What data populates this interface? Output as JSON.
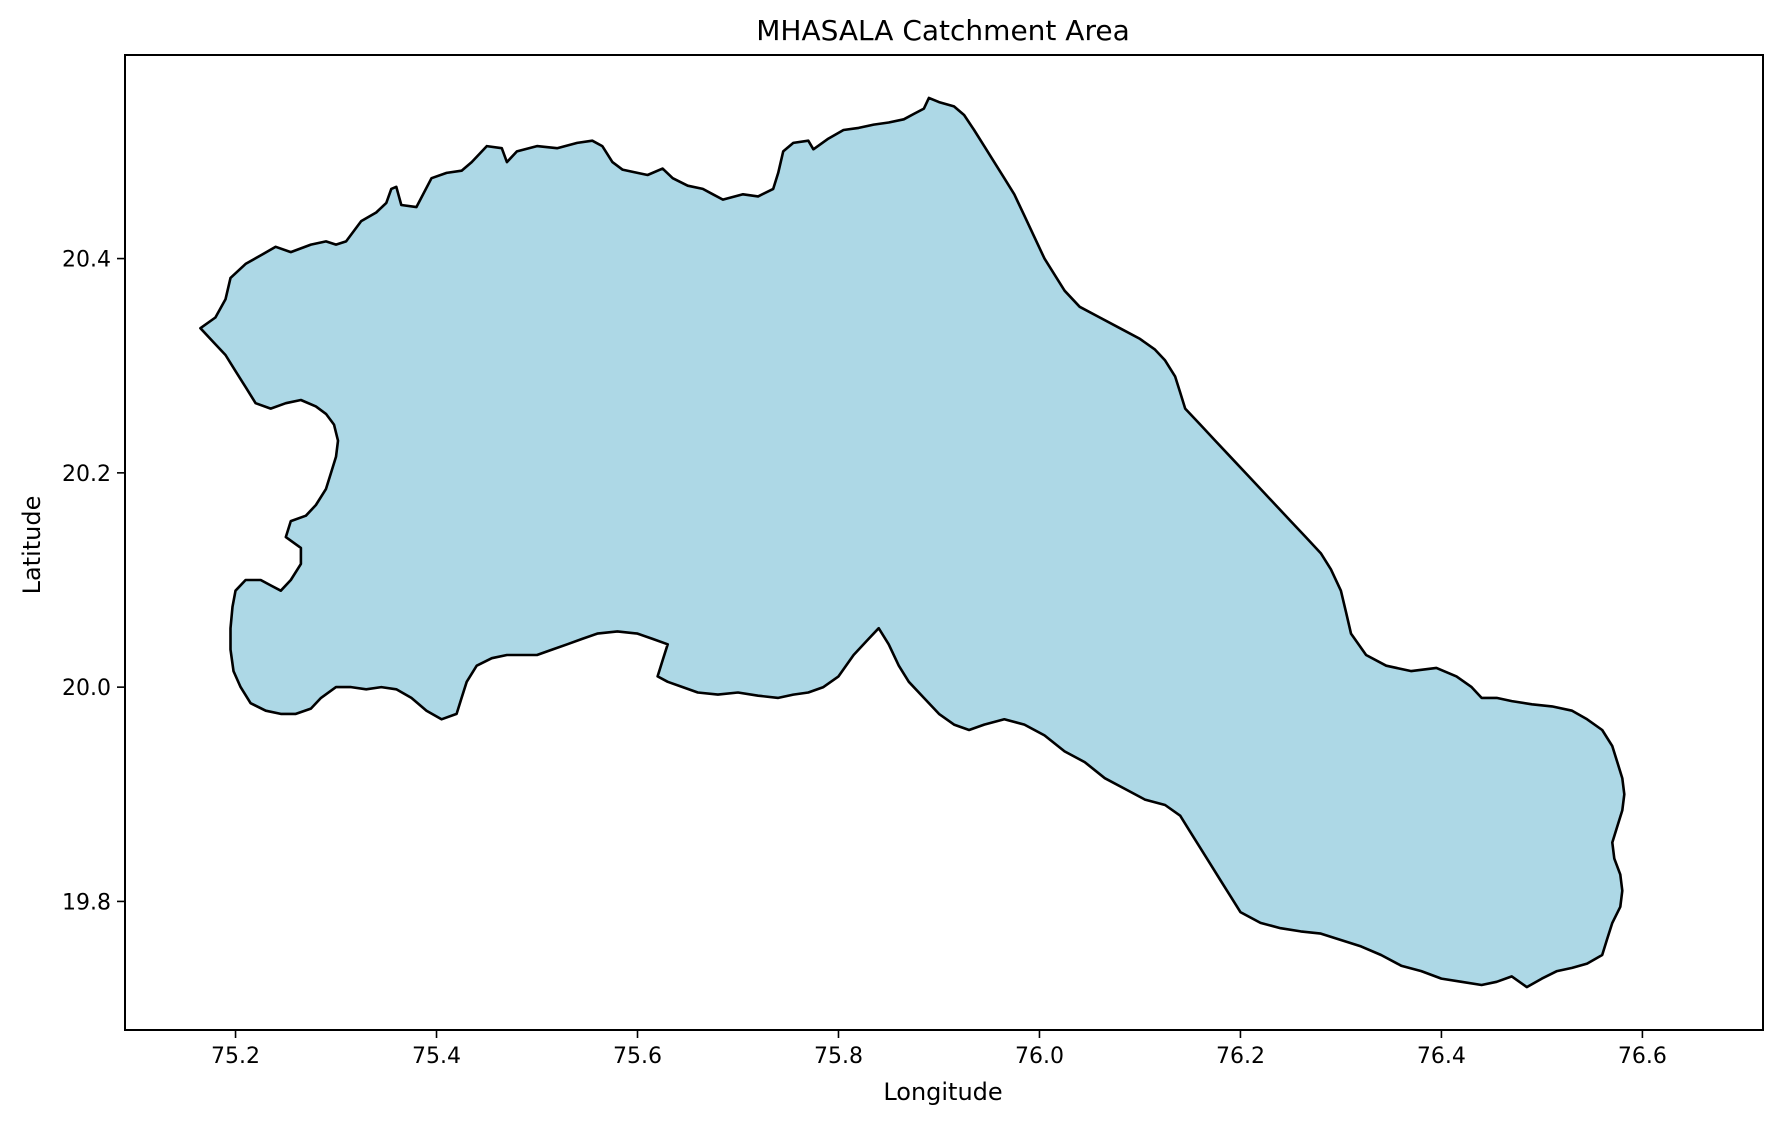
{
  "chart_data": {
    "type": "map",
    "title": "MHASALA Catchment Area",
    "xlabel": "Longitude",
    "ylabel": "Latitude",
    "xlim": [
      75.09,
      76.72
    ],
    "ylim": [
      19.68,
      20.59
    ],
    "xticks": [
      {
        "value": 75.2,
        "label": "75.2"
      },
      {
        "value": 75.4,
        "label": "75.4"
      },
      {
        "value": 75.6,
        "label": "75.6"
      },
      {
        "value": 75.8,
        "label": "75.8"
      },
      {
        "value": 76.0,
        "label": "76.0"
      },
      {
        "value": 76.2,
        "label": "76.2"
      },
      {
        "value": 76.4,
        "label": "76.4"
      },
      {
        "value": 76.6,
        "label": "76.6"
      }
    ],
    "yticks": [
      {
        "value": 19.8,
        "label": "19.8"
      },
      {
        "value": 20.0,
        "label": "20.0"
      },
      {
        "value": 20.2,
        "label": "20.2"
      },
      {
        "value": 20.4,
        "label": "20.4"
      }
    ],
    "grid": false,
    "colors": {
      "fill": "#add8e6",
      "edge": "#000000"
    },
    "boundary": [
      [
        75.165,
        20.335
      ],
      [
        75.18,
        20.345
      ],
      [
        75.19,
        20.362
      ],
      [
        75.195,
        20.382
      ],
      [
        75.21,
        20.395
      ],
      [
        75.225,
        20.403
      ],
      [
        75.24,
        20.411
      ],
      [
        75.255,
        20.406
      ],
      [
        75.275,
        20.413
      ],
      [
        75.29,
        20.416
      ],
      [
        75.3,
        20.413
      ],
      [
        75.31,
        20.416
      ],
      [
        75.325,
        20.435
      ],
      [
        75.34,
        20.443
      ],
      [
        75.35,
        20.452
      ],
      [
        75.355,
        20.465
      ],
      [
        75.36,
        20.467
      ],
      [
        75.365,
        20.45
      ],
      [
        75.38,
        20.448
      ],
      [
        75.395,
        20.475
      ],
      [
        75.41,
        20.48
      ],
      [
        75.425,
        20.482
      ],
      [
        75.435,
        20.49
      ],
      [
        75.45,
        20.505
      ],
      [
        75.465,
        20.503
      ],
      [
        75.47,
        20.49
      ],
      [
        75.48,
        20.5
      ],
      [
        75.5,
        20.505
      ],
      [
        75.52,
        20.503
      ],
      [
        75.54,
        20.508
      ],
      [
        75.555,
        20.51
      ],
      [
        75.565,
        20.505
      ],
      [
        75.575,
        20.49
      ],
      [
        75.585,
        20.483
      ],
      [
        75.6,
        20.48
      ],
      [
        75.61,
        20.478
      ],
      [
        75.625,
        20.484
      ],
      [
        75.635,
        20.475
      ],
      [
        75.65,
        20.468
      ],
      [
        75.665,
        20.465
      ],
      [
        75.675,
        20.46
      ],
      [
        75.685,
        20.455
      ],
      [
        75.705,
        20.46
      ],
      [
        75.72,
        20.458
      ],
      [
        75.735,
        20.465
      ],
      [
        75.74,
        20.48
      ],
      [
        75.745,
        20.5
      ],
      [
        75.755,
        20.508
      ],
      [
        75.77,
        20.51
      ],
      [
        75.775,
        20.502
      ],
      [
        75.79,
        20.512
      ],
      [
        75.805,
        20.52
      ],
      [
        75.82,
        20.522
      ],
      [
        75.835,
        20.525
      ],
      [
        75.85,
        20.527
      ],
      [
        75.865,
        20.53
      ],
      [
        75.875,
        20.535
      ],
      [
        75.885,
        20.54
      ],
      [
        75.89,
        20.55
      ],
      [
        75.9,
        20.546
      ],
      [
        75.915,
        20.542
      ],
      [
        75.925,
        20.534
      ],
      [
        75.935,
        20.52
      ],
      [
        75.945,
        20.505
      ],
      [
        75.955,
        20.49
      ],
      [
        75.965,
        20.475
      ],
      [
        75.975,
        20.46
      ],
      [
        75.985,
        20.44
      ],
      [
        75.995,
        20.42
      ],
      [
        76.005,
        20.4
      ],
      [
        76.015,
        20.385
      ],
      [
        76.025,
        20.37
      ],
      [
        76.04,
        20.355
      ],
      [
        76.06,
        20.345
      ],
      [
        76.08,
        20.335
      ],
      [
        76.1,
        20.325
      ],
      [
        76.115,
        20.315
      ],
      [
        76.125,
        20.305
      ],
      [
        76.135,
        20.29
      ],
      [
        76.14,
        20.275
      ],
      [
        76.145,
        20.26
      ],
      [
        76.16,
        20.245
      ],
      [
        76.175,
        20.23
      ],
      [
        76.19,
        20.215
      ],
      [
        76.205,
        20.2
      ],
      [
        76.22,
        20.185
      ],
      [
        76.235,
        20.17
      ],
      [
        76.25,
        20.155
      ],
      [
        76.265,
        20.14
      ],
      [
        76.28,
        20.125
      ],
      [
        76.29,
        20.11
      ],
      [
        76.3,
        20.09
      ],
      [
        76.305,
        20.07
      ],
      [
        76.31,
        20.05
      ],
      [
        76.325,
        20.03
      ],
      [
        76.345,
        20.02
      ],
      [
        76.37,
        20.015
      ],
      [
        76.395,
        20.018
      ],
      [
        76.415,
        20.01
      ],
      [
        76.43,
        20.0
      ],
      [
        76.44,
        19.99
      ],
      [
        76.455,
        19.99
      ],
      [
        76.47,
        19.987
      ],
      [
        76.49,
        19.984
      ],
      [
        76.51,
        19.982
      ],
      [
        76.53,
        19.978
      ],
      [
        76.545,
        19.97
      ],
      [
        76.56,
        19.96
      ],
      [
        76.57,
        19.945
      ],
      [
        76.575,
        19.93
      ],
      [
        76.58,
        19.915
      ],
      [
        76.582,
        19.9
      ],
      [
        76.58,
        19.885
      ],
      [
        76.575,
        19.87
      ],
      [
        76.57,
        19.855
      ],
      [
        76.572,
        19.84
      ],
      [
        76.578,
        19.825
      ],
      [
        76.58,
        19.81
      ],
      [
        76.578,
        19.795
      ],
      [
        76.57,
        19.78
      ],
      [
        76.565,
        19.765
      ],
      [
        76.56,
        19.75
      ],
      [
        76.545,
        19.742
      ],
      [
        76.53,
        19.738
      ],
      [
        76.515,
        19.735
      ],
      [
        76.5,
        19.728
      ],
      [
        76.485,
        19.72
      ],
      [
        76.47,
        19.73
      ],
      [
        76.455,
        19.725
      ],
      [
        76.44,
        19.722
      ],
      [
        76.42,
        19.725
      ],
      [
        76.4,
        19.728
      ],
      [
        76.38,
        19.735
      ],
      [
        76.36,
        19.74
      ],
      [
        76.34,
        19.75
      ],
      [
        76.32,
        19.758
      ],
      [
        76.3,
        19.764
      ],
      [
        76.28,
        19.77
      ],
      [
        76.26,
        19.772
      ],
      [
        76.24,
        19.775
      ],
      [
        76.22,
        19.78
      ],
      [
        76.2,
        19.79
      ],
      [
        76.19,
        19.805
      ],
      [
        76.18,
        19.82
      ],
      [
        76.17,
        19.835
      ],
      [
        76.16,
        19.85
      ],
      [
        76.15,
        19.865
      ],
      [
        76.14,
        19.88
      ],
      [
        76.125,
        19.89
      ],
      [
        76.105,
        19.895
      ],
      [
        76.085,
        19.905
      ],
      [
        76.065,
        19.915
      ],
      [
        76.045,
        19.93
      ],
      [
        76.025,
        19.94
      ],
      [
        76.005,
        19.955
      ],
      [
        75.985,
        19.965
      ],
      [
        75.965,
        19.97
      ],
      [
        75.945,
        19.965
      ],
      [
        75.93,
        19.96
      ],
      [
        75.915,
        19.965
      ],
      [
        75.9,
        19.975
      ],
      [
        75.885,
        19.99
      ],
      [
        75.87,
        20.005
      ],
      [
        75.86,
        20.02
      ],
      [
        75.85,
        20.04
      ],
      [
        75.84,
        20.055
      ],
      [
        75.83,
        20.045
      ],
      [
        75.815,
        20.03
      ],
      [
        75.8,
        20.01
      ],
      [
        75.785,
        20.0
      ],
      [
        75.77,
        19.995
      ],
      [
        75.755,
        19.993
      ],
      [
        75.74,
        19.99
      ],
      [
        75.72,
        19.992
      ],
      [
        75.7,
        19.995
      ],
      [
        75.68,
        19.993
      ],
      [
        75.66,
        19.995
      ],
      [
        75.645,
        20.0
      ],
      [
        75.63,
        20.005
      ],
      [
        75.62,
        20.01
      ],
      [
        75.625,
        20.025
      ],
      [
        75.63,
        20.04
      ],
      [
        75.615,
        20.045
      ],
      [
        75.6,
        20.05
      ],
      [
        75.58,
        20.052
      ],
      [
        75.56,
        20.05
      ],
      [
        75.545,
        20.045
      ],
      [
        75.53,
        20.04
      ],
      [
        75.515,
        20.035
      ],
      [
        75.5,
        20.03
      ],
      [
        75.485,
        20.03
      ],
      [
        75.47,
        20.03
      ],
      [
        75.455,
        20.027
      ],
      [
        75.44,
        20.02
      ],
      [
        75.43,
        20.005
      ],
      [
        75.425,
        19.99
      ],
      [
        75.42,
        19.975
      ],
      [
        75.405,
        19.97
      ],
      [
        75.39,
        19.978
      ],
      [
        75.375,
        19.99
      ],
      [
        75.36,
        19.998
      ],
      [
        75.345,
        20.0
      ],
      [
        75.33,
        19.998
      ],
      [
        75.315,
        20.0
      ],
      [
        75.3,
        20.0
      ],
      [
        75.285,
        19.99
      ],
      [
        75.275,
        19.98
      ],
      [
        75.26,
        19.975
      ],
      [
        75.245,
        19.975
      ],
      [
        75.23,
        19.978
      ],
      [
        75.215,
        19.985
      ],
      [
        75.205,
        20.0
      ],
      [
        75.198,
        20.015
      ],
      [
        75.195,
        20.035
      ],
      [
        75.195,
        20.055
      ],
      [
        75.197,
        20.075
      ],
      [
        75.2,
        20.09
      ],
      [
        75.21,
        20.1
      ],
      [
        75.225,
        20.1
      ],
      [
        75.235,
        20.095
      ],
      [
        75.245,
        20.09
      ],
      [
        75.255,
        20.1
      ],
      [
        75.265,
        20.115
      ],
      [
        75.265,
        20.13
      ],
      [
        75.25,
        20.14
      ],
      [
        75.255,
        20.155
      ],
      [
        75.27,
        20.16
      ],
      [
        75.28,
        20.17
      ],
      [
        75.29,
        20.185
      ],
      [
        75.295,
        20.2
      ],
      [
        75.3,
        20.215
      ],
      [
        75.302,
        20.23
      ],
      [
        75.298,
        20.245
      ],
      [
        75.29,
        20.255
      ],
      [
        75.28,
        20.262
      ],
      [
        75.265,
        20.268
      ],
      [
        75.25,
        20.265
      ],
      [
        75.235,
        20.26
      ],
      [
        75.22,
        20.265
      ],
      [
        75.21,
        20.28
      ],
      [
        75.2,
        20.295
      ],
      [
        75.19,
        20.31
      ],
      [
        75.178,
        20.322
      ],
      [
        75.165,
        20.335
      ]
    ]
  }
}
